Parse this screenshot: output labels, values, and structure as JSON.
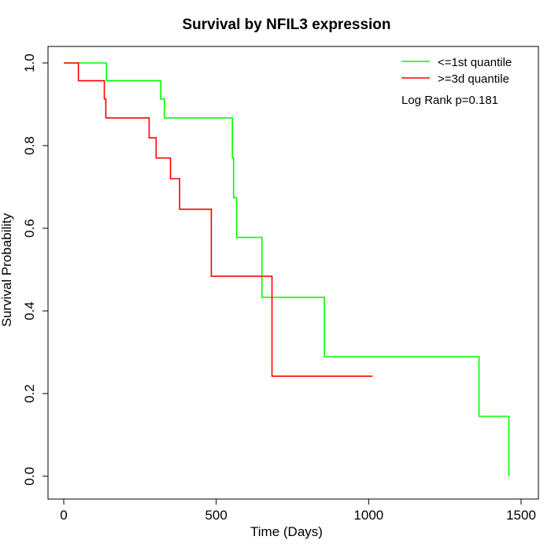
{
  "chart_data": {
    "type": "line",
    "subtype": "kaplan-meier step",
    "title": "Survival by NFIL3 expression",
    "xlabel": "Time (Days)",
    "ylabel": "Survival Probability",
    "xlim": [
      0,
      1500
    ],
    "ylim": [
      0,
      1
    ],
    "x_ticks": [
      "0",
      "500",
      "1000",
      "1500"
    ],
    "y_ticks": [
      "0.0",
      "0.2",
      "0.4",
      "0.6",
      "0.8",
      "1.0"
    ],
    "grid": false,
    "legend_position": "top-right",
    "annotation": "Log Rank p=0.181",
    "series": [
      {
        "name": "<=1st quantile",
        "color": "#00FF00",
        "steps": [
          {
            "x": 0,
            "y": 1.0
          },
          {
            "x": 140,
            "y": 0.957
          },
          {
            "x": 318,
            "y": 0.913
          },
          {
            "x": 330,
            "y": 0.867
          },
          {
            "x": 553,
            "y": 0.77
          },
          {
            "x": 557,
            "y": 0.674
          },
          {
            "x": 567,
            "y": 0.578
          },
          {
            "x": 650,
            "y": 0.433
          },
          {
            "x": 855,
            "y": 0.289
          },
          {
            "x": 1362,
            "y": 0.145
          },
          {
            "x": 1460,
            "y": 0.0
          }
        ],
        "end_x": 1460
      },
      {
        "name": ">=3d quantile",
        "color": "#FF0000",
        "steps": [
          {
            "x": 0,
            "y": 1.0
          },
          {
            "x": 48,
            "y": 0.957
          },
          {
            "x": 133,
            "y": 0.913
          },
          {
            "x": 138,
            "y": 0.867
          },
          {
            "x": 280,
            "y": 0.819
          },
          {
            "x": 303,
            "y": 0.77
          },
          {
            "x": 350,
            "y": 0.72
          },
          {
            "x": 380,
            "y": 0.646
          },
          {
            "x": 484,
            "y": 0.484
          },
          {
            "x": 683,
            "y": 0.242
          }
        ],
        "end_x": 1013
      }
    ]
  }
}
